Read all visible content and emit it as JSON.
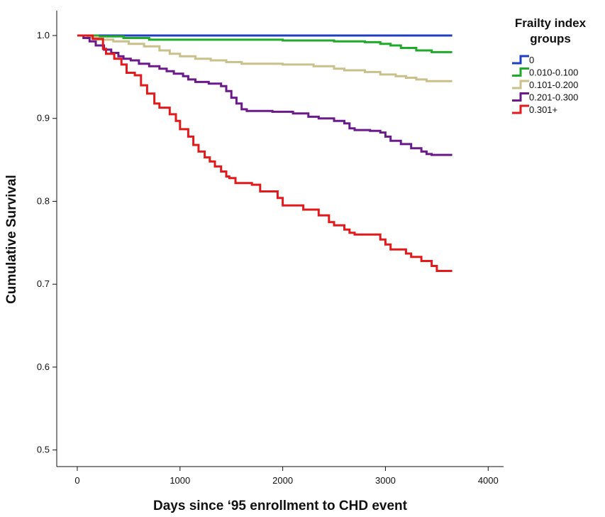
{
  "chart_data": {
    "type": "line",
    "title": "",
    "xlabel": "Days since ‘95 enrollment to CHD event",
    "ylabel": "Cumulative Survival",
    "xlim": [
      -200,
      4150
    ],
    "ylim": [
      0.48,
      1.03
    ],
    "xticks": [
      0,
      1000,
      2000,
      3000,
      4000
    ],
    "yticks": [
      0.5,
      0.6,
      0.7,
      0.8,
      0.9,
      1.0
    ],
    "ytick_labels": [
      "0.5",
      "0.6",
      "0.7",
      "0.8",
      "0.9",
      "1.0"
    ],
    "grid": false,
    "step": true,
    "legend": {
      "title_lines": [
        "Frailty index",
        "groups"
      ],
      "position": "top-right"
    },
    "series": [
      {
        "name": "0",
        "color": "#1f3fbf",
        "points": [
          [
            0,
            1.0
          ],
          [
            3650,
            1.0
          ]
        ]
      },
      {
        "name": "0.010-0.100",
        "color": "#1faa2a",
        "points": [
          [
            0,
            1.0
          ],
          [
            200,
            0.999
          ],
          [
            450,
            0.997
          ],
          [
            700,
            0.995
          ],
          [
            1200,
            0.995
          ],
          [
            2000,
            0.994
          ],
          [
            2500,
            0.993
          ],
          [
            2800,
            0.992
          ],
          [
            2950,
            0.99
          ],
          [
            3050,
            0.988
          ],
          [
            3150,
            0.985
          ],
          [
            3300,
            0.982
          ],
          [
            3450,
            0.98
          ],
          [
            3650,
            0.98
          ]
        ]
      },
      {
        "name": "0.101-0.200",
        "color": "#c9c08a",
        "points": [
          [
            0,
            1.0
          ],
          [
            100,
            0.998
          ],
          [
            200,
            0.995
          ],
          [
            350,
            0.993
          ],
          [
            500,
            0.99
          ],
          [
            650,
            0.987
          ],
          [
            800,
            0.982
          ],
          [
            900,
            0.978
          ],
          [
            1000,
            0.975
          ],
          [
            1150,
            0.972
          ],
          [
            1300,
            0.97
          ],
          [
            1450,
            0.968
          ],
          [
            1600,
            0.966
          ],
          [
            2000,
            0.965
          ],
          [
            2300,
            0.963
          ],
          [
            2500,
            0.96
          ],
          [
            2600,
            0.958
          ],
          [
            2800,
            0.956
          ],
          [
            2950,
            0.953
          ],
          [
            3100,
            0.951
          ],
          [
            3200,
            0.949
          ],
          [
            3300,
            0.947
          ],
          [
            3400,
            0.945
          ],
          [
            3650,
            0.945
          ]
        ]
      },
      {
        "name": "0.201-0.300",
        "color": "#6a1a8a",
        "points": [
          [
            0,
            1.0
          ],
          [
            60,
            0.997
          ],
          [
            120,
            0.993
          ],
          [
            180,
            0.988
          ],
          [
            260,
            0.983
          ],
          [
            330,
            0.979
          ],
          [
            400,
            0.975
          ],
          [
            450,
            0.972
          ],
          [
            520,
            0.97
          ],
          [
            600,
            0.966
          ],
          [
            700,
            0.963
          ],
          [
            800,
            0.96
          ],
          [
            870,
            0.957
          ],
          [
            940,
            0.954
          ],
          [
            1030,
            0.951
          ],
          [
            1080,
            0.947
          ],
          [
            1150,
            0.944
          ],
          [
            1280,
            0.942
          ],
          [
            1400,
            0.939
          ],
          [
            1450,
            0.933
          ],
          [
            1500,
            0.925
          ],
          [
            1550,
            0.918
          ],
          [
            1600,
            0.911
          ],
          [
            1650,
            0.909
          ],
          [
            1900,
            0.908
          ],
          [
            2100,
            0.906
          ],
          [
            2250,
            0.902
          ],
          [
            2350,
            0.9
          ],
          [
            2500,
            0.897
          ],
          [
            2600,
            0.894
          ],
          [
            2650,
            0.888
          ],
          [
            2700,
            0.886
          ],
          [
            2850,
            0.885
          ],
          [
            2950,
            0.883
          ],
          [
            3000,
            0.878
          ],
          [
            3050,
            0.873
          ],
          [
            3150,
            0.869
          ],
          [
            3250,
            0.864
          ],
          [
            3350,
            0.86
          ],
          [
            3400,
            0.857
          ],
          [
            3450,
            0.856
          ],
          [
            3650,
            0.856
          ]
        ]
      },
      {
        "name": "0.301+",
        "color": "#e31a1c",
        "points": [
          [
            0,
            1.0
          ],
          [
            150,
            0.996
          ],
          [
            250,
            0.984
          ],
          [
            280,
            0.978
          ],
          [
            360,
            0.972
          ],
          [
            430,
            0.965
          ],
          [
            480,
            0.955
          ],
          [
            560,
            0.952
          ],
          [
            620,
            0.94
          ],
          [
            680,
            0.93
          ],
          [
            750,
            0.918
          ],
          [
            800,
            0.913
          ],
          [
            900,
            0.905
          ],
          [
            960,
            0.897
          ],
          [
            1000,
            0.887
          ],
          [
            1080,
            0.878
          ],
          [
            1130,
            0.868
          ],
          [
            1180,
            0.86
          ],
          [
            1240,
            0.853
          ],
          [
            1290,
            0.848
          ],
          [
            1340,
            0.842
          ],
          [
            1400,
            0.836
          ],
          [
            1450,
            0.83
          ],
          [
            1480,
            0.828
          ],
          [
            1540,
            0.822
          ],
          [
            1700,
            0.82
          ],
          [
            1780,
            0.812
          ],
          [
            1950,
            0.804
          ],
          [
            2000,
            0.795
          ],
          [
            2200,
            0.79
          ],
          [
            2350,
            0.783
          ],
          [
            2450,
            0.775
          ],
          [
            2500,
            0.771
          ],
          [
            2600,
            0.766
          ],
          [
            2650,
            0.762
          ],
          [
            2700,
            0.76
          ],
          [
            2950,
            0.754
          ],
          [
            3000,
            0.748
          ],
          [
            3050,
            0.742
          ],
          [
            3200,
            0.737
          ],
          [
            3250,
            0.733
          ],
          [
            3350,
            0.728
          ],
          [
            3450,
            0.722
          ],
          [
            3500,
            0.716
          ],
          [
            3650,
            0.716
          ]
        ]
      }
    ]
  }
}
